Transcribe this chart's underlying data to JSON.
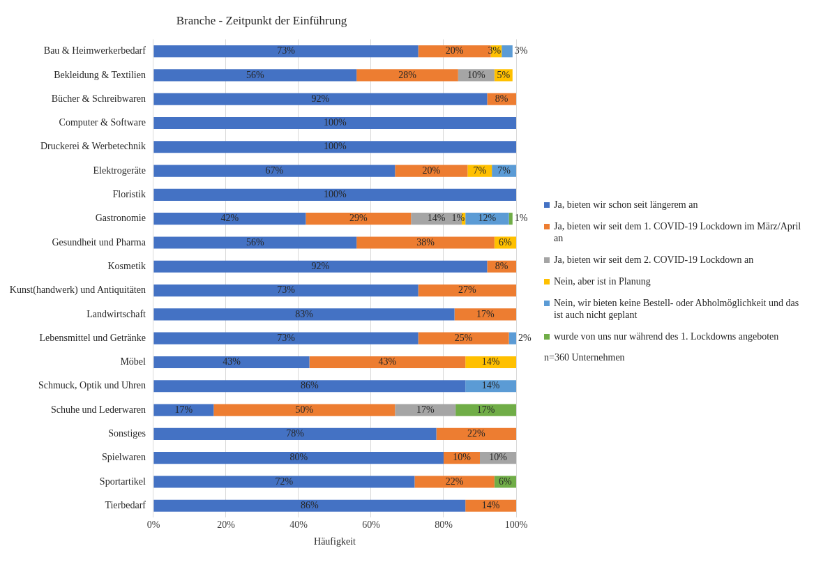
{
  "chart_data": {
    "type": "bar",
    "orientation": "horizontal",
    "stacked": true,
    "title": "Branche - Zeitpunkt der Einführung",
    "xlabel": "Häufigkeit",
    "categories": [
      "Bau & Heimwerkerbedarf",
      "Bekleidung & Textilien",
      "Bücher & Schreibwaren",
      "Computer & Software",
      "Druckerei & Werbetechnik",
      "Elektrogeräte",
      "Floristik",
      "Gastronomie",
      "Gesundheit und Pharma",
      "Kosmetik",
      "Kunst(handwerk) und Antiquitäten",
      "Landwirtschaft",
      "Lebensmittel und Getränke",
      "Möbel",
      "Schmuck, Optik und Uhren",
      "Schuhe und Lederwaren",
      "Sonstiges",
      "Spielwaren",
      "Sportartikel",
      "Tierbedarf"
    ],
    "series": [
      {
        "name": "Ja, bieten wir schon seit längerem an",
        "color": "#4472c4",
        "values": [
          73,
          56,
          92,
          100,
          100,
          66.6,
          100,
          42,
          56,
          92,
          73,
          83,
          73,
          43,
          86,
          16.6,
          78,
          80,
          72,
          86
        ],
        "value_labels": [
          "73%",
          "56%",
          "92%",
          "100%",
          "100%",
          "67%",
          "100%",
          "42%",
          "56%",
          "92%",
          "73%",
          "83%",
          "73%",
          "43%",
          "86%",
          "17%",
          "78%",
          "80%",
          "72%",
          "86%"
        ]
      },
      {
        "name": "Ja, bieten wir seit dem 1. COVID-19 Lockdown im März/April an",
        "color": "#ed7d31",
        "values": [
          20,
          28,
          8,
          null,
          null,
          20,
          null,
          29,
          38,
          8,
          27,
          17,
          25,
          43,
          null,
          50,
          22,
          10,
          22,
          14
        ],
        "value_labels": [
          "20%",
          "28%",
          "8%",
          null,
          null,
          "20%",
          null,
          "29%",
          "38%",
          "8%",
          "27%",
          "17%",
          "25%",
          "43%",
          null,
          "50%",
          "22%",
          "10%",
          "22%",
          "14%"
        ]
      },
      {
        "name": "Ja, bieten wir seit dem 2. COVID-19 Lockdown an",
        "color": "#a5a5a5",
        "values": [
          null,
          10,
          null,
          null,
          null,
          null,
          null,
          14,
          null,
          null,
          null,
          null,
          null,
          null,
          null,
          16.7,
          null,
          10,
          null,
          null
        ],
        "value_labels": [
          null,
          "10%",
          null,
          null,
          null,
          null,
          null,
          "14%",
          null,
          null,
          null,
          null,
          null,
          null,
          null,
          "17%",
          null,
          "10%",
          null,
          null
        ]
      },
      {
        "name": "Nein, aber ist in Planung",
        "color": "#ffc000",
        "values": [
          3,
          5,
          null,
          null,
          null,
          6.7,
          null,
          1,
          6,
          null,
          null,
          null,
          null,
          14,
          null,
          null,
          null,
          null,
          null,
          null
        ],
        "value_labels": [
          "3%",
          "5%",
          null,
          null,
          null,
          "7%",
          null,
          "1%",
          "6%",
          null,
          null,
          null,
          null,
          "14%",
          null,
          null,
          null,
          null,
          null,
          null
        ]
      },
      {
        "name": "Nein, wir bieten keine Bestell- oder Abholmöglichkeit und das ist auch nicht geplant",
        "color": "#5b9bd5",
        "values": [
          3,
          null,
          null,
          null,
          null,
          6.7,
          null,
          12,
          null,
          null,
          null,
          null,
          2,
          null,
          14,
          null,
          null,
          null,
          null,
          null
        ],
        "value_labels": [
          "3%",
          null,
          null,
          null,
          null,
          "7%",
          null,
          "12%",
          null,
          null,
          null,
          null,
          "2%",
          null,
          "14%",
          null,
          null,
          null,
          null,
          null
        ]
      },
      {
        "name": "wurde von uns nur während des 1. Lockdowns angeboten",
        "color": "#70ad47",
        "values": [
          null,
          null,
          null,
          null,
          null,
          null,
          null,
          1,
          null,
          null,
          null,
          null,
          null,
          null,
          null,
          16.7,
          null,
          null,
          6,
          null
        ],
        "value_labels": [
          null,
          null,
          null,
          null,
          null,
          null,
          null,
          "1%",
          null,
          null,
          null,
          null,
          null,
          null,
          null,
          "17%",
          null,
          null,
          "6%",
          null
        ]
      }
    ],
    "xlim": [
      0,
      100
    ],
    "xticks": [
      {
        "value": 0,
        "label": "0%"
      },
      {
        "value": 20,
        "label": "20%"
      },
      {
        "value": 40,
        "label": "40%"
      },
      {
        "value": 60,
        "label": "60%"
      },
      {
        "value": 80,
        "label": "80%"
      },
      {
        "value": 100,
        "label": "100%"
      }
    ],
    "grid": "x",
    "legend": "right",
    "annotations": [
      "n=360 Unternehmen"
    ]
  }
}
